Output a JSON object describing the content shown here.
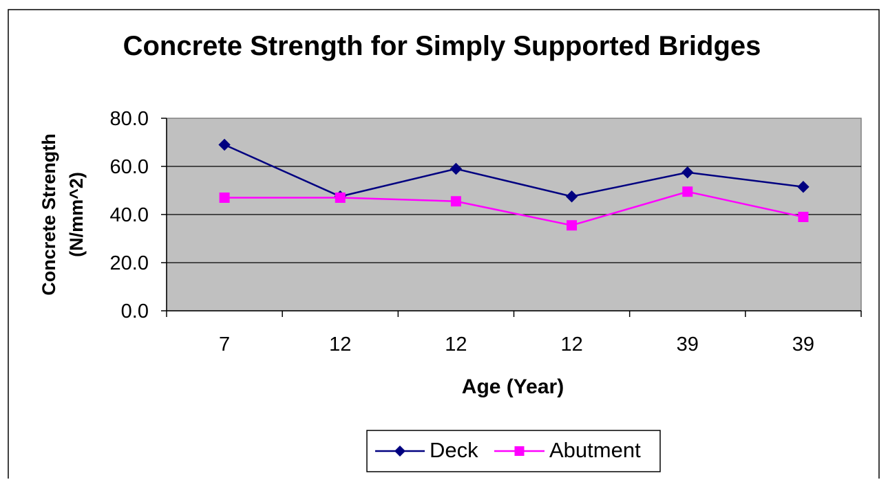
{
  "chart_data": {
    "type": "line",
    "title": "Concrete Strength for Simply Supported Bridges",
    "xlabel": "Age (Year)",
    "ylabel_lines": [
      "Concrete Strength",
      "(N/mm^2)"
    ],
    "categories": [
      "7",
      "12",
      "12",
      "12",
      "39",
      "39"
    ],
    "ylim": [
      0,
      80
    ],
    "yticks": [
      0,
      20,
      40,
      60,
      80
    ],
    "ytick_labels": [
      "0.0",
      "20.0",
      "40.0",
      "60.0",
      "80.0"
    ],
    "grid": true,
    "legend_position": "bottom-center",
    "plot_background": "#C0C0C0",
    "series": [
      {
        "name": "Deck",
        "values": [
          69,
          47.5,
          59,
          47.5,
          57.5,
          51.5
        ],
        "color": "#000080",
        "marker": "diamond"
      },
      {
        "name": "Abutment",
        "values": [
          47,
          47,
          45.5,
          35.5,
          49.5,
          39
        ],
        "color": "#FF00FF",
        "marker": "square"
      }
    ]
  }
}
